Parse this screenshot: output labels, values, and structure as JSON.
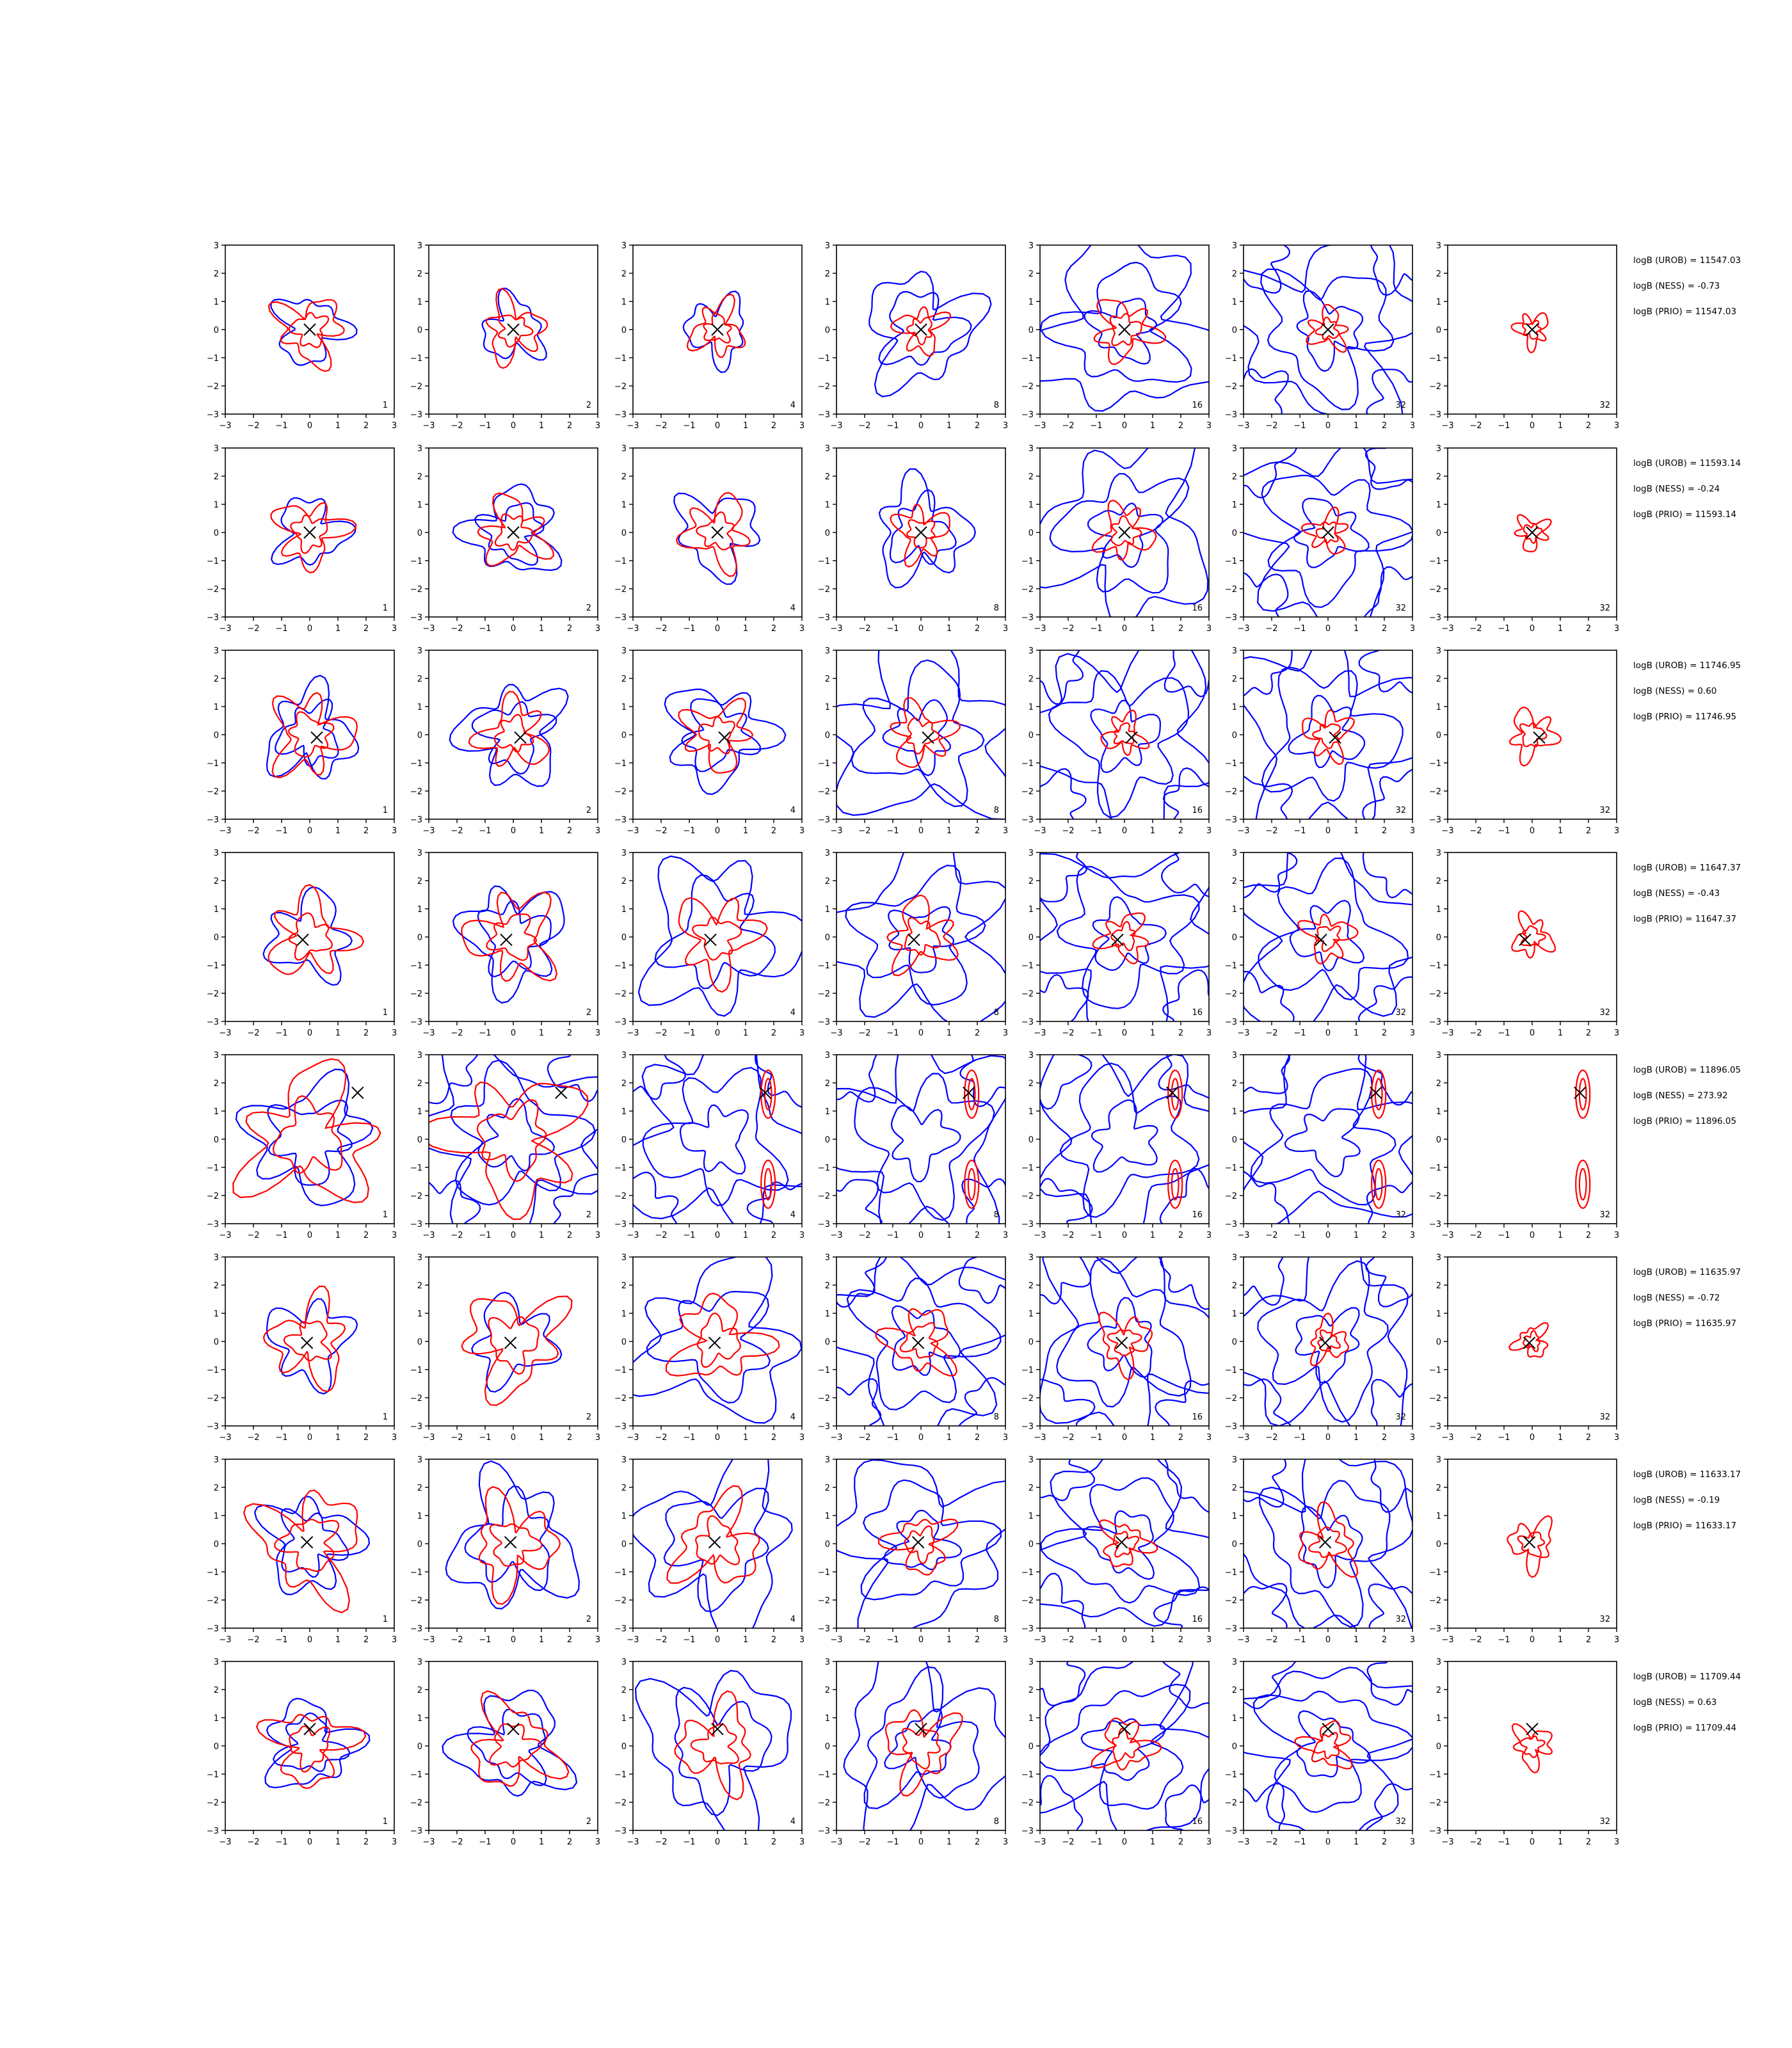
{
  "figure": {
    "columns": [
      "1",
      "2",
      "4",
      "8",
      "16",
      "32",
      "32"
    ],
    "colors": {
      "inner": "#ff0000",
      "outer": "#0000ff",
      "marker": "#000000"
    },
    "marker_symbol": "x"
  },
  "chart_data": {
    "type": "contour",
    "xlim": [
      -3,
      3
    ],
    "ylim": [
      -3,
      3
    ],
    "xticks": [
      "−3",
      "−2",
      "−1",
      "0",
      "1",
      "2",
      "3"
    ],
    "yticks": [
      "3",
      "2",
      "1",
      "0",
      "−1",
      "−2",
      "−3"
    ],
    "rows": [
      {
        "true_x": 0.0,
        "true_y": 0.0,
        "stats": [
          "logB (UROB) = 11547.03",
          "logB (NESS) = -0.73",
          "logB (PRIO) = 11547.03"
        ],
        "outer_scale": [
          1.1,
          1.0,
          1.0,
          1.8,
          2.9,
          3.0,
          0
        ],
        "inner_scale": [
          1.0,
          0.9,
          0.8,
          0.7,
          0.9,
          0.6,
          0.5
        ]
      },
      {
        "true_x": 0.0,
        "true_y": 0.0,
        "stats": [
          "logB (UROB) = 11593.14",
          "logB (NESS) = -0.24",
          "logB (PRIO) = 11593.14"
        ],
        "outer_scale": [
          1.1,
          1.4,
          1.3,
          1.5,
          2.8,
          3.0,
          0
        ],
        "inner_scale": [
          1.0,
          1.0,
          1.0,
          0.8,
          0.8,
          0.6,
          0.5
        ]
      },
      {
        "true_x": 0.25,
        "true_y": -0.1,
        "stats": [
          "logB (UROB) = 11746.95",
          "logB (NESS) = 0.60",
          "logB (PRIO) = 11746.95"
        ],
        "outer_scale": [
          1.4,
          1.6,
          1.6,
          2.9,
          3.0,
          3.0,
          0
        ],
        "inner_scale": [
          1.2,
          1.0,
          1.0,
          0.9,
          0.6,
          0.7,
          0.7
        ]
      },
      {
        "true_x": -0.25,
        "true_y": -0.1,
        "stats": [
          "logB (UROB) = 11647.37",
          "logB (NESS) = -0.43",
          "logB (PRIO) = 11647.37"
        ],
        "outer_scale": [
          1.3,
          1.6,
          2.4,
          2.9,
          3.0,
          3.0,
          0
        ],
        "inner_scale": [
          1.2,
          1.3,
          1.2,
          1.0,
          0.7,
          0.7,
          0.6
        ]
      },
      {
        "true_x": 1.7,
        "true_y": 1.65,
        "stats": [
          "logB (UROB) = 11896.05",
          "logB (NESS) = 273.92",
          "logB (PRIO) = 11896.05"
        ],
        "outer_scale": [
          1.9,
          3.0,
          3.0,
          3.0,
          3.0,
          3.0,
          0
        ],
        "inner_scale": [
          2.0,
          2.0,
          1.8,
          1.6,
          1.4,
          1.2,
          1.1
        ]
      },
      {
        "true_x": -0.1,
        "true_y": -0.05,
        "stats": [
          "logB (UROB) = 11635.97",
          "logB (NESS) = -0.72",
          "logB (PRIO) = 11635.97"
        ],
        "outer_scale": [
          1.3,
          1.3,
          2.5,
          3.0,
          3.0,
          3.0,
          0
        ],
        "inner_scale": [
          1.2,
          1.5,
          1.3,
          1.0,
          0.8,
          0.6,
          0.5
        ]
      },
      {
        "true_x": -0.1,
        "true_y": 0.05,
        "stats": [
          "logB (UROB) = 11633.17",
          "logB (NESS) = -0.19",
          "logB (PRIO) = 11633.17"
        ],
        "outer_scale": [
          1.5,
          2.0,
          2.5,
          2.8,
          3.0,
          3.0,
          0
        ],
        "inner_scale": [
          1.6,
          1.3,
          1.3,
          0.9,
          0.7,
          0.9,
          0.7
        ]
      },
      {
        "true_x": 0.0,
        "true_y": 0.6,
        "stats": [
          "logB (UROB) = 11709.44",
          "logB (NESS) = 0.63",
          "logB (PRIO) = 11709.44"
        ],
        "outer_scale": [
          1.4,
          1.7,
          2.4,
          2.8,
          3.0,
          3.0,
          0
        ],
        "inner_scale": [
          1.2,
          1.3,
          1.2,
          1.1,
          0.8,
          0.7,
          0.6
        ]
      }
    ]
  }
}
